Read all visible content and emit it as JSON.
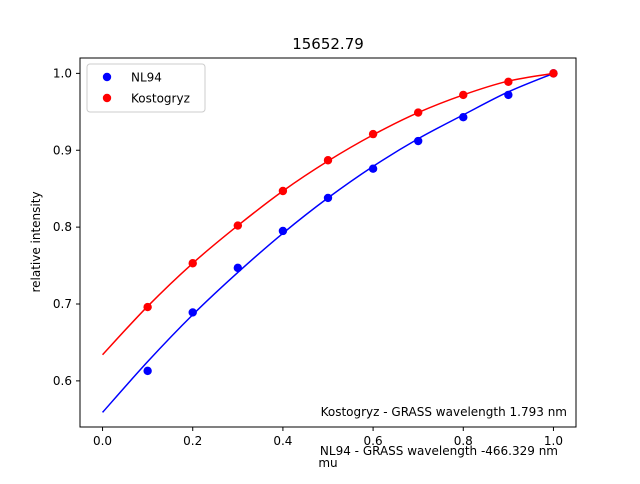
{
  "chart_data": {
    "type": "scatter",
    "title": "15652.79",
    "xlabel": "mu",
    "ylabel": "relative intensity",
    "xlim": [
      -0.05,
      1.05
    ],
    "ylim": [
      0.54,
      1.02
    ],
    "x_ticks": [
      0.0,
      0.2,
      0.4,
      0.6,
      0.8,
      1.0
    ],
    "x_tick_labels": [
      "0.0",
      "0.2",
      "0.4",
      "0.6",
      "0.8",
      "1.0"
    ],
    "y_ticks": [
      0.6,
      0.7,
      0.8,
      0.9,
      1.0
    ],
    "y_tick_labels": [
      "0.6",
      "0.7",
      "0.8",
      "0.9",
      "1.0"
    ],
    "grid": false,
    "legend_position": "top-left",
    "series": [
      {
        "name": "NL94",
        "color": "#0000ff",
        "x": [
          0.1,
          0.2,
          0.3,
          0.4,
          0.5,
          0.6,
          0.7,
          0.8,
          0.9,
          1.0
        ],
        "y": [
          0.613,
          0.689,
          0.747,
          0.795,
          0.838,
          0.876,
          0.912,
          0.943,
          0.972,
          1.0
        ],
        "fit_curve": {
          "x": [
            0.0,
            0.1,
            0.2,
            0.3,
            0.4,
            0.5,
            0.6,
            0.7,
            0.8,
            0.9,
            1.0
          ],
          "y": [
            0.559,
            0.625,
            0.686,
            0.741,
            0.792,
            0.838,
            0.879,
            0.915,
            0.946,
            0.976,
            1.0
          ]
        }
      },
      {
        "name": "Kostogryz",
        "color": "#ff0000",
        "x": [
          0.1,
          0.2,
          0.3,
          0.4,
          0.5,
          0.6,
          0.7,
          0.8,
          0.9,
          1.0
        ],
        "y": [
          0.696,
          0.753,
          0.802,
          0.847,
          0.887,
          0.921,
          0.949,
          0.972,
          0.989,
          1.0
        ],
        "fit_curve": {
          "x": [
            0.0,
            0.1,
            0.2,
            0.3,
            0.4,
            0.5,
            0.6,
            0.7,
            0.8,
            0.9,
            1.0
          ],
          "y": [
            0.634,
            0.697,
            0.753,
            0.802,
            0.847,
            0.886,
            0.92,
            0.949,
            0.972,
            0.99,
            1.0
          ]
        }
      }
    ],
    "annotations": [
      "Kostogryz - GRASS wavelength 1.793 nm",
      "NL94 - GRASS wavelength -466.329 nm"
    ]
  }
}
